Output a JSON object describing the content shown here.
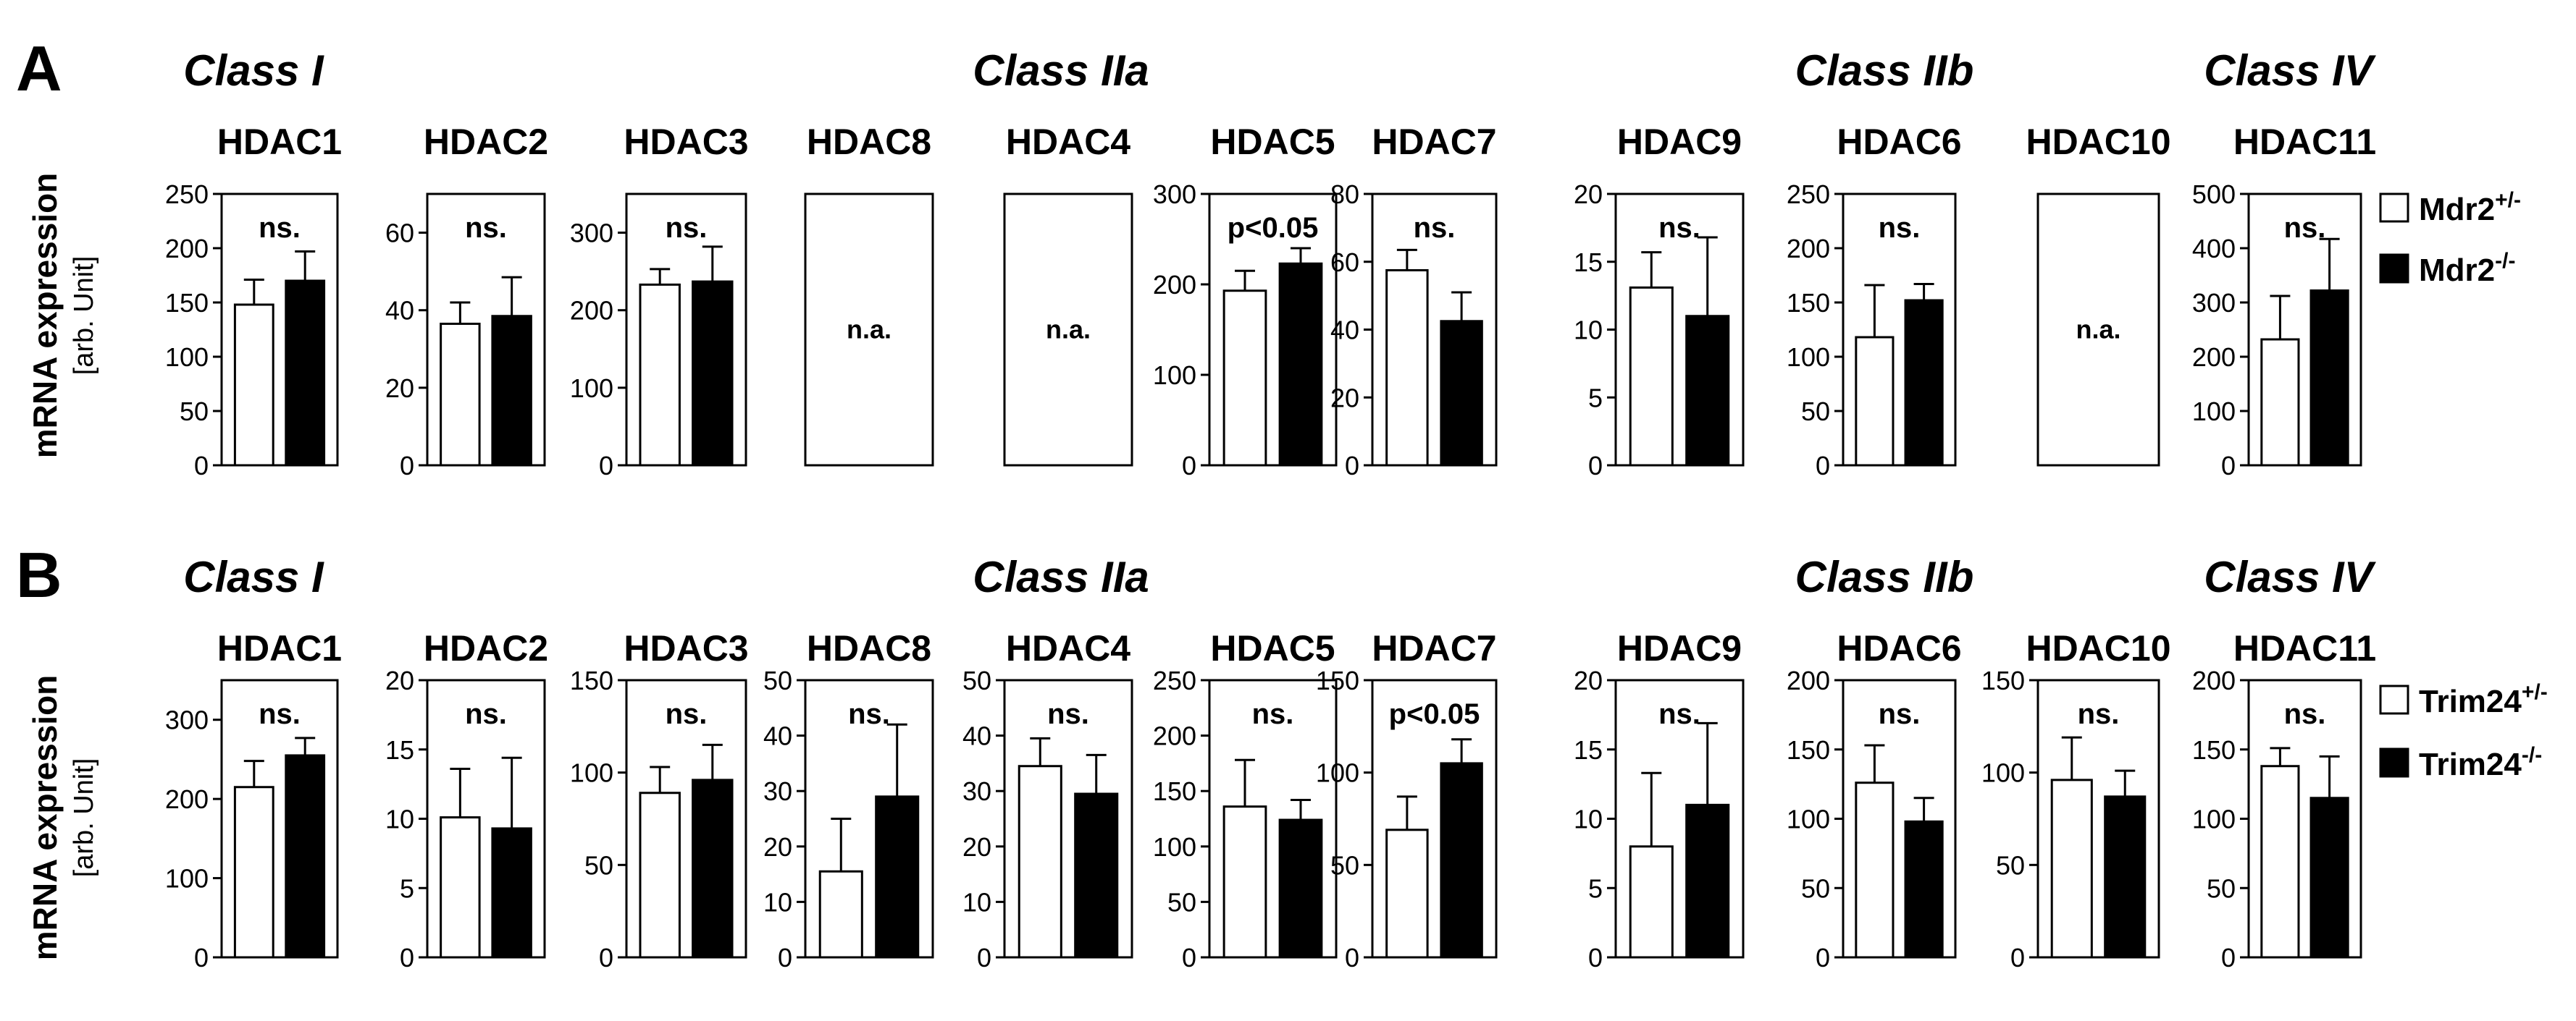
{
  "colors": {
    "wildtype_bar": "#ffffff",
    "knockout_bar": "#000000",
    "axis": "#000000"
  },
  "panels": [
    {
      "letter": "A",
      "ylabel_main": "mRNA expression",
      "ylabel_sub": "[arb. Unit]",
      "classes": [
        {
          "label": "Class I",
          "from": 0,
          "to": 2
        },
        {
          "label": "Class IIa",
          "from": 3,
          "to": 7
        },
        {
          "label": "Class IIb",
          "from": 8,
          "to": 9
        },
        {
          "label": "Class IV",
          "from": 10,
          "to": 10
        }
      ],
      "legend": [
        {
          "base": "Mdr2",
          "sup": "+/-",
          "fill": "#ffffff"
        },
        {
          "base": "Mdr2",
          "sup": "-/-",
          "fill": "#000000"
        }
      ]
    },
    {
      "letter": "B",
      "ylabel_main": "mRNA expression",
      "ylabel_sub": "[arb. Unit]",
      "classes": [
        {
          "label": "Class I",
          "from": 0,
          "to": 2
        },
        {
          "label": "Class IIa",
          "from": 3,
          "to": 7
        },
        {
          "label": "Class IIb",
          "from": 8,
          "to": 9
        },
        {
          "label": "Class IV",
          "from": 10,
          "to": 10
        }
      ],
      "legend": [
        {
          "base": "Trim24",
          "sup": "+/-",
          "fill": "#ffffff"
        },
        {
          "base": "Trim24",
          "sup": "-/-",
          "fill": "#000000"
        }
      ]
    }
  ],
  "chart_data": [
    {
      "type": "bar",
      "panel": "A",
      "charts": [
        {
          "title": "HDAC1",
          "ylim": [
            0,
            250
          ],
          "ticks": [
            0,
            50,
            100,
            150,
            200,
            250
          ],
          "annotation": "ns.",
          "values": [
            148,
            170
          ],
          "errors": [
            23,
            27
          ]
        },
        {
          "title": "HDAC2",
          "ylim": [
            0,
            70
          ],
          "ticks": [
            0,
            20,
            40,
            60
          ],
          "annotation": "ns.",
          "values": [
            36.5,
            38.5
          ],
          "errors": [
            5.5,
            10
          ]
        },
        {
          "title": "HDAC3",
          "ylim": [
            0,
            350
          ],
          "ticks": [
            0,
            100,
            200,
            300
          ],
          "annotation": "ns.",
          "values": [
            233,
            237
          ],
          "errors": [
            20,
            45
          ]
        },
        {
          "title": "HDAC8",
          "na": true,
          "annotation": "n.a."
        },
        {
          "title": "HDAC4",
          "na": true,
          "annotation": "n.a."
        },
        {
          "title": "HDAC5",
          "ylim": [
            0,
            300
          ],
          "ticks": [
            0,
            100,
            200,
            300
          ],
          "annotation": "p<0.05",
          "values": [
            193,
            223
          ],
          "errors": [
            22,
            17
          ]
        },
        {
          "title": "HDAC7",
          "ylim": [
            0,
            80
          ],
          "ticks": [
            0,
            20,
            40,
            60,
            80
          ],
          "annotation": "ns.",
          "values": [
            57.5,
            42.5
          ],
          "errors": [
            6,
            8.5
          ]
        },
        {
          "title": "HDAC9",
          "ylim": [
            0,
            20
          ],
          "ticks": [
            0,
            5,
            10,
            15,
            20
          ],
          "annotation": "ns.",
          "values": [
            13.1,
            11
          ],
          "errors": [
            2.6,
            5.8
          ]
        },
        {
          "title": "HDAC6",
          "ylim": [
            0,
            250
          ],
          "ticks": [
            0,
            50,
            100,
            150,
            200,
            250
          ],
          "annotation": "ns.",
          "values": [
            118,
            152
          ],
          "errors": [
            48,
            15
          ]
        },
        {
          "title": "HDAC10",
          "na": true,
          "annotation": "n.a."
        },
        {
          "title": "HDAC11",
          "ylim": [
            0,
            500
          ],
          "ticks": [
            0,
            100,
            200,
            300,
            400,
            500
          ],
          "annotation": "ns.",
          "values": [
            232,
            322
          ],
          "errors": [
            80,
            95
          ]
        }
      ],
      "series": [
        {
          "name": "Mdr2+/-"
        },
        {
          "name": "Mdr2-/-"
        }
      ]
    },
    {
      "type": "bar",
      "panel": "B",
      "charts": [
        {
          "title": "HDAC1",
          "ylim": [
            0,
            350
          ],
          "ticks": [
            0,
            100,
            200,
            300
          ],
          "annotation": "ns.",
          "values": [
            215,
            255
          ],
          "errors": [
            33,
            22
          ]
        },
        {
          "title": "HDAC2",
          "ylim": [
            0,
            20
          ],
          "ticks": [
            0,
            5,
            10,
            15,
            20
          ],
          "annotation": "ns.",
          "values": [
            10.1,
            9.3
          ],
          "errors": [
            3.5,
            5.1
          ]
        },
        {
          "title": "HDAC3",
          "ylim": [
            0,
            150
          ],
          "ticks": [
            0,
            50,
            100,
            150
          ],
          "annotation": "ns.",
          "values": [
            89,
            96
          ],
          "errors": [
            14,
            19
          ]
        },
        {
          "title": "HDAC8",
          "ylim": [
            0,
            50
          ],
          "ticks": [
            0,
            10,
            20,
            30,
            40,
            50
          ],
          "annotation": "ns.",
          "values": [
            15.5,
            29
          ],
          "errors": [
            9.5,
            13
          ]
        },
        {
          "title": "HDAC4",
          "ylim": [
            0,
            50
          ],
          "ticks": [
            0,
            10,
            20,
            30,
            40,
            50
          ],
          "annotation": "ns.",
          "values": [
            34.5,
            29.5
          ],
          "errors": [
            5,
            7
          ]
        },
        {
          "title": "HDAC5",
          "ylim": [
            0,
            250
          ],
          "ticks": [
            0,
            50,
            100,
            150,
            200,
            250
          ],
          "annotation": "ns.",
          "values": [
            136,
            124
          ],
          "errors": [
            42,
            18
          ]
        },
        {
          "title": "HDAC7",
          "ylim": [
            0,
            150
          ],
          "ticks": [
            0,
            50,
            100,
            150
          ],
          "annotation": "p<0.05",
          "values": [
            69,
            105
          ],
          "errors": [
            18,
            13
          ]
        },
        {
          "title": "HDAC9",
          "ylim": [
            0,
            20
          ],
          "ticks": [
            0,
            5,
            10,
            15,
            20
          ],
          "annotation": "ns.",
          "values": [
            8,
            11
          ],
          "errors": [
            5.3,
            5.9
          ]
        },
        {
          "title": "HDAC6",
          "ylim": [
            0,
            200
          ],
          "ticks": [
            0,
            50,
            100,
            150,
            200
          ],
          "annotation": "ns.",
          "values": [
            126,
            98
          ],
          "errors": [
            27,
            17
          ]
        },
        {
          "title": "HDAC10",
          "ylim": [
            0,
            150
          ],
          "ticks": [
            0,
            50,
            100,
            150
          ],
          "annotation": "ns.",
          "values": [
            96,
            87
          ],
          "errors": [
            23,
            14
          ]
        },
        {
          "title": "HDAC11",
          "ylim": [
            0,
            200
          ],
          "ticks": [
            0,
            50,
            100,
            150,
            200
          ],
          "annotation": "ns.",
          "values": [
            138,
            115
          ],
          "errors": [
            13,
            30
          ]
        }
      ],
      "series": [
        {
          "name": "Trim24+/-"
        },
        {
          "name": "Trim24-/-"
        }
      ]
    }
  ]
}
